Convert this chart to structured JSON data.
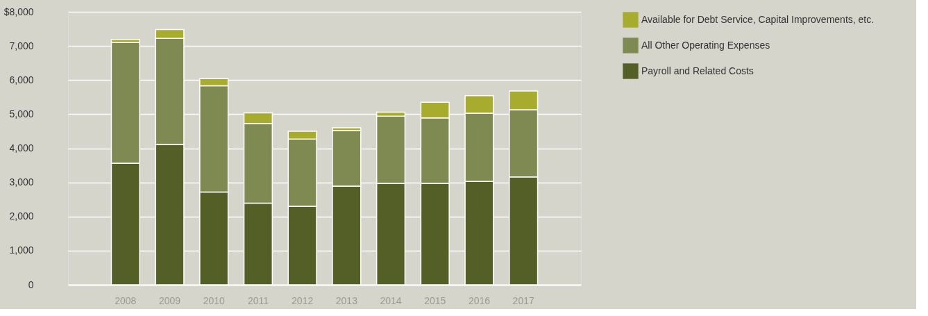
{
  "chart_data": {
    "type": "bar",
    "stacked": true,
    "categories": [
      "2008",
      "2009",
      "2010",
      "2011",
      "2012",
      "2013",
      "2014",
      "2015",
      "2016",
      "2017"
    ],
    "series": [
      {
        "name": "Payroll and Related Costs",
        "color": "#545e27",
        "values": [
          3560,
          4110,
          2720,
          2390,
          2300,
          2890,
          2970,
          2970,
          3030,
          3160
        ]
      },
      {
        "name": "All Other Operating Expenses",
        "color": "#7f8952",
        "values": [
          3540,
          3110,
          3110,
          2340,
          1970,
          1630,
          1970,
          1920,
          2000,
          1970
        ]
      },
      {
        "name": "Available for Debt Service, Capital Improvements, etc.",
        "color": "#a8ac2e",
        "values": [
          90,
          260,
          210,
          310,
          230,
          80,
          120,
          460,
          510,
          550
        ]
      }
    ],
    "ylim": [
      0,
      8000
    ],
    "yticks": [
      0,
      {
        "value": 1000,
        "label": "1,000"
      },
      {
        "value": 2000,
        "label": "2,000"
      },
      {
        "value": 3000,
        "label": "3,000"
      },
      {
        "value": 4000,
        "label": "4,000"
      },
      {
        "value": 5000,
        "label": "5,000"
      },
      {
        "value": 6000,
        "label": "6,000"
      },
      {
        "value": 7000,
        "label": "7,000"
      },
      {
        "value": 8000,
        "label": "$8,000"
      }
    ],
    "grid": "y",
    "legend": "right"
  }
}
